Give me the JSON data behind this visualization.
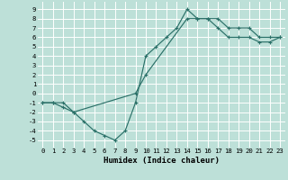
{
  "xlabel": "Humidex (Indice chaleur)",
  "bg_color": "#bde0d8",
  "grid_color": "#ffffff",
  "line_color": "#2a7068",
  "xlim": [
    -0.5,
    23.5
  ],
  "ylim": [
    -5.8,
    9.8
  ],
  "xticks": [
    0,
    1,
    2,
    3,
    4,
    5,
    6,
    7,
    8,
    9,
    10,
    11,
    12,
    13,
    14,
    15,
    16,
    17,
    18,
    19,
    20,
    21,
    22,
    23
  ],
  "yticks": [
    -5,
    -4,
    -3,
    -2,
    -1,
    0,
    1,
    2,
    3,
    4,
    5,
    6,
    7,
    8,
    9
  ],
  "line1_x": [
    0,
    1,
    2,
    3,
    4,
    5,
    6,
    7,
    8,
    9,
    10,
    11,
    12,
    13,
    14,
    15,
    16,
    17,
    18,
    19,
    20,
    21,
    22,
    23
  ],
  "line1_y": [
    -1,
    -1,
    -1.5,
    -2,
    -3,
    -4,
    -4.5,
    -5,
    -4,
    -1,
    4,
    5,
    6,
    7,
    9,
    8,
    8,
    8,
    7,
    7,
    7,
    6,
    6,
    6
  ],
  "line2_x": [
    0,
    1,
    2,
    3,
    9,
    10,
    14,
    15,
    16,
    17,
    18,
    19,
    20,
    21,
    22,
    23
  ],
  "line2_y": [
    -1,
    -1,
    -1,
    -2,
    0,
    2,
    8,
    8,
    8,
    7,
    6,
    6,
    6,
    5.5,
    5.5,
    6
  ],
  "xlabel_fontsize": 6.5,
  "tick_fontsize": 5.2
}
